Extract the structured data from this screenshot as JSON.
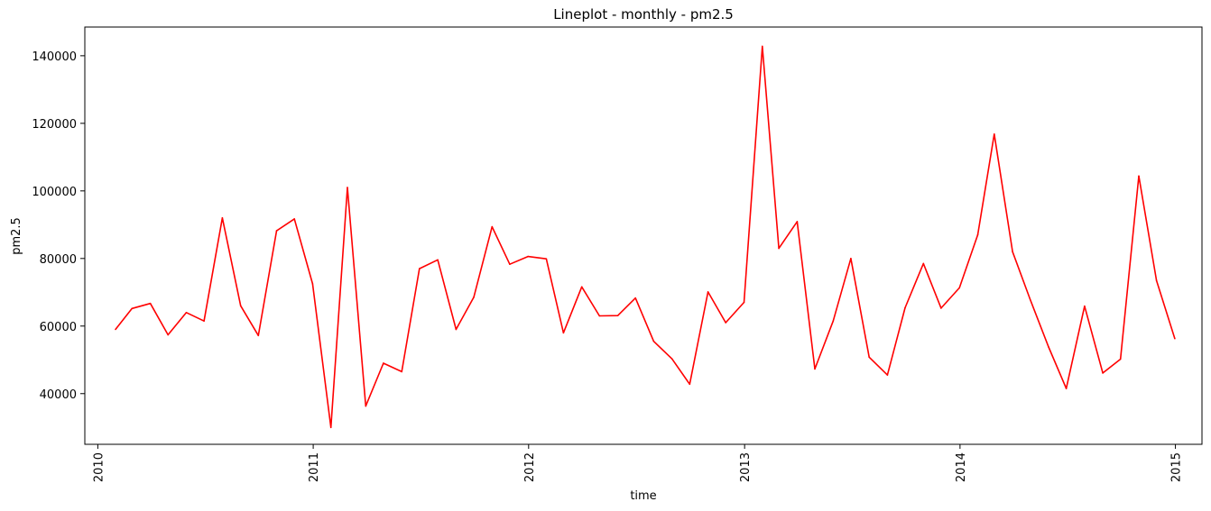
{
  "chart_data": {
    "type": "line",
    "title": "Lineplot - monthly - pm2.5",
    "xlabel": "time",
    "ylabel": "pm2.5",
    "xlim": [
      "2009-12-10",
      "2015-02-15"
    ],
    "ylim": [
      25000,
      148500
    ],
    "grid": false,
    "x_ticks": [
      "2010",
      "2011",
      "2012",
      "2013",
      "2014",
      "2015"
    ],
    "x_tick_dates": [
      "2010-01-01",
      "2011-01-01",
      "2012-01-01",
      "2013-01-01",
      "2014-01-01",
      "2015-01-01"
    ],
    "y_ticks": [
      40000,
      60000,
      80000,
      100000,
      120000,
      140000
    ],
    "series": [
      {
        "color": "#ff0000",
        "x": [
          "2010-01-31",
          "2010-02-28",
          "2010-03-31",
          "2010-04-30",
          "2010-05-31",
          "2010-06-30",
          "2010-07-31",
          "2010-08-31",
          "2010-09-30",
          "2010-10-31",
          "2010-11-30",
          "2010-12-31",
          "2011-01-31",
          "2011-02-28",
          "2011-03-31",
          "2011-04-30",
          "2011-05-31",
          "2011-06-30",
          "2011-07-31",
          "2011-08-31",
          "2011-09-30",
          "2011-10-31",
          "2011-11-30",
          "2011-12-31",
          "2012-01-31",
          "2012-02-29",
          "2012-03-31",
          "2012-04-30",
          "2012-05-31",
          "2012-06-30",
          "2012-07-31",
          "2012-08-31",
          "2012-09-30",
          "2012-10-31",
          "2012-11-30",
          "2012-12-31",
          "2013-01-31",
          "2013-02-28",
          "2013-03-31",
          "2013-04-30",
          "2013-05-31",
          "2013-06-30",
          "2013-07-31",
          "2013-08-31",
          "2013-09-30",
          "2013-10-31",
          "2013-11-30",
          "2013-12-31",
          "2014-01-31",
          "2014-02-28",
          "2014-03-31",
          "2014-04-30",
          "2014-05-31",
          "2014-06-30",
          "2014-07-31",
          "2014-08-31",
          "2014-09-30",
          "2014-10-31",
          "2014-11-30",
          "2014-12-31"
        ],
        "values": [
          59000,
          65200,
          66700,
          57400,
          64000,
          61500,
          92000,
          66000,
          57200,
          88200,
          91700,
          72500,
          30000,
          101000,
          36300,
          49000,
          46500,
          77000,
          79600,
          59000,
          68500,
          89400,
          78300,
          80600,
          79900,
          58000,
          71600,
          63000,
          63100,
          68300,
          55500,
          50300,
          42800,
          70100,
          61000,
          67000,
          142800,
          83000,
          90900,
          47300,
          61500,
          80000,
          50800,
          45500,
          65400,
          78500,
          65300,
          71300,
          87000,
          116800,
          82000,
          67800,
          53800,
          41500,
          65900,
          46100,
          50200,
          104400,
          73500,
          56300
        ]
      }
    ]
  }
}
